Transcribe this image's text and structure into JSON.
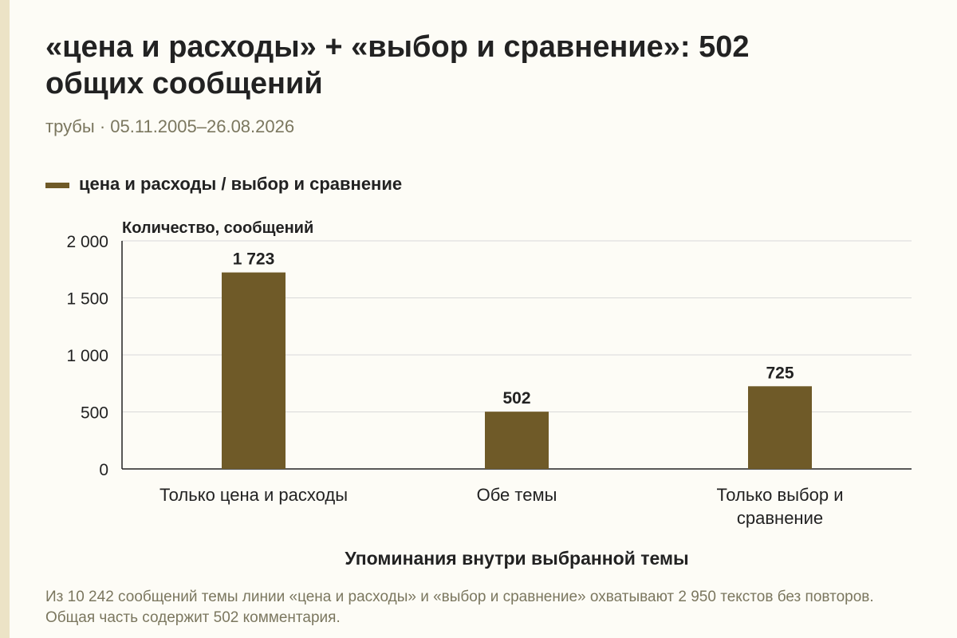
{
  "header": {
    "title": "«цена и расходы» + «выбор и сравнение»: 502 общих сообщений",
    "subtitle": "трубы · 05.11.2005–26.08.2026"
  },
  "legend": {
    "label": "цена и расходы / выбор и сравнение",
    "color": "#6f5a28"
  },
  "chart_data": {
    "type": "bar",
    "categories": [
      "Только цена и расходы",
      "Обе темы",
      "Только выбор и сравнение"
    ],
    "category_lines": [
      [
        "Только цена и расходы"
      ],
      [
        "Обе темы"
      ],
      [
        "Только выбор и",
        "сравнение"
      ]
    ],
    "values": [
      1723,
      502,
      725
    ],
    "value_labels": [
      "1 723",
      "502",
      "725"
    ],
    "ylabel": "Количество, сообщений",
    "xlabel": "Упоминания внутри выбранной темы",
    "ylim": [
      0,
      2000
    ],
    "yticks": [
      0,
      500,
      1000,
      1500,
      2000
    ],
    "ytick_labels": [
      "0",
      "500",
      "1 000",
      "1 500",
      "2 000"
    ],
    "grid": true,
    "bar_color": "#6f5a28",
    "grid_color": "#d9d9d9"
  },
  "footnote": "Из 10 242 сообщений темы линии «цена и расходы» и «выбор и сравнение» охватывают 2 950 текстов без повторов. Общая часть содержит 502 комментария."
}
